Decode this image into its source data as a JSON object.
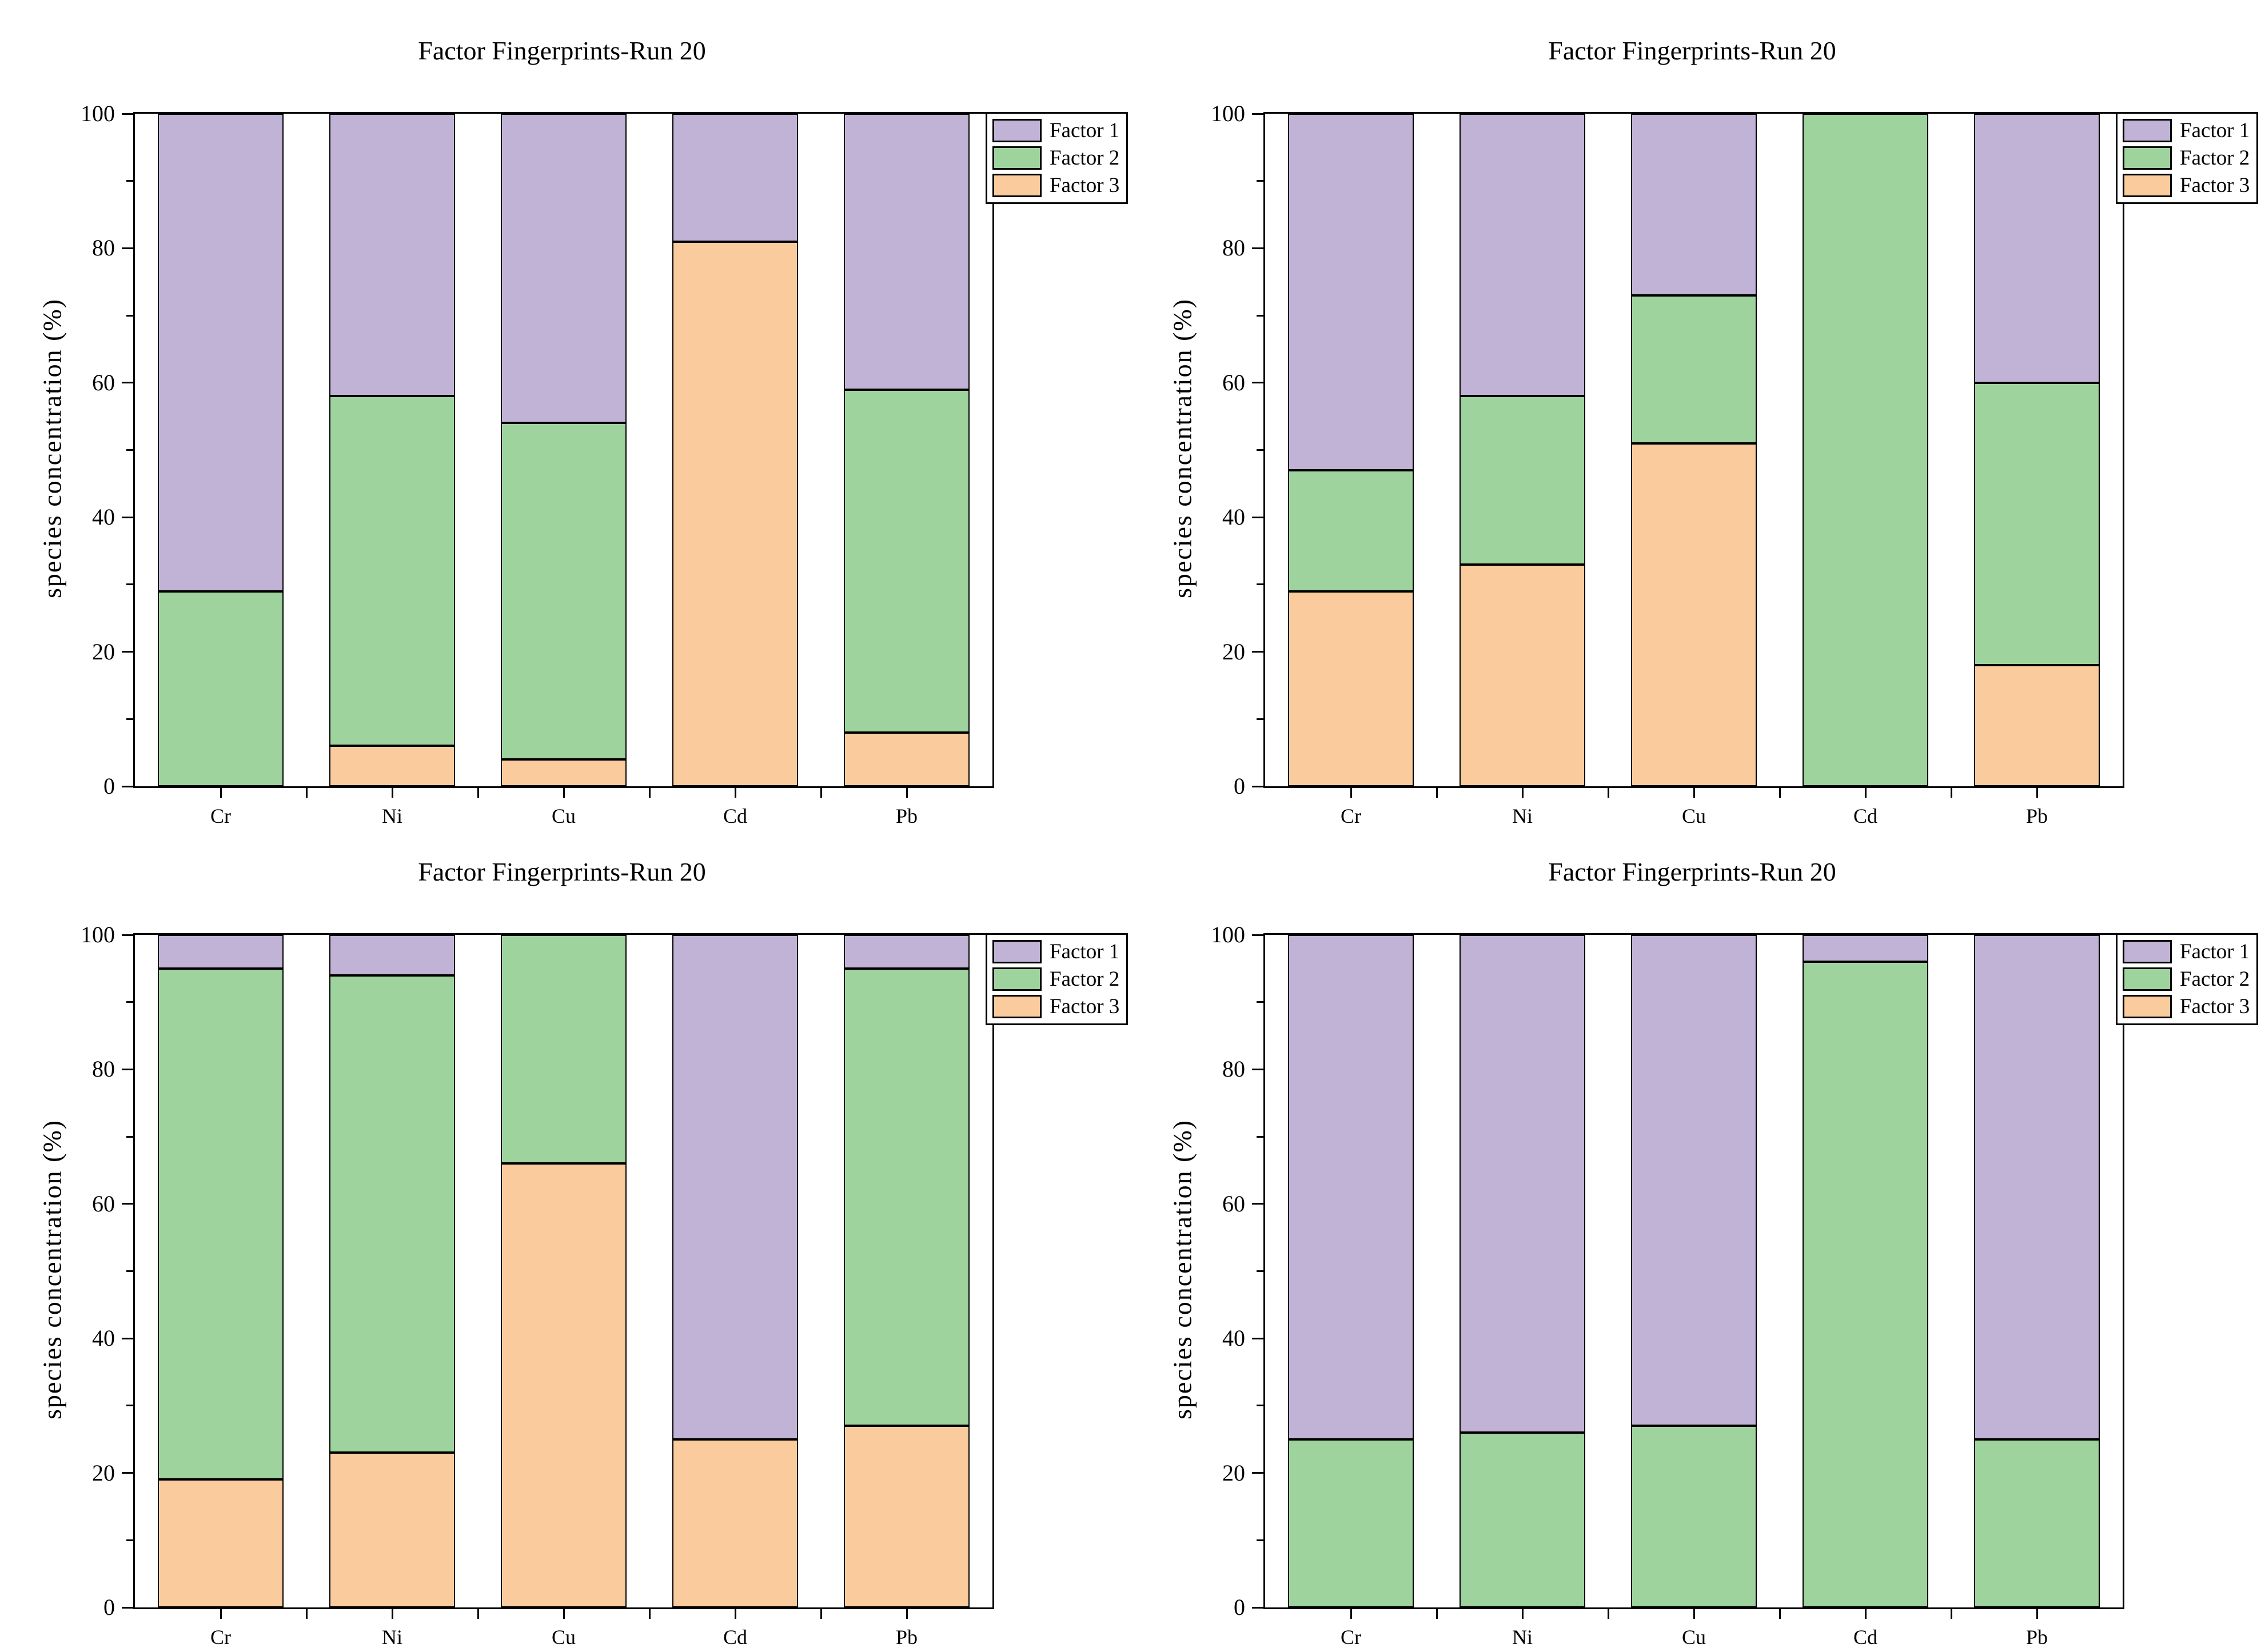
{
  "figure": {
    "layout": "2x2 grid of stacked bar charts",
    "background": "#ffffff"
  },
  "colors": {
    "factor1": "#C1B3D6",
    "factor2": "#9FD39E",
    "factor3": "#FACC9D",
    "axis": "#000000"
  },
  "chart_data": [
    {
      "type": "bar",
      "stacked": true,
      "position": "top-left",
      "title": "Factor Fingerprints-Run 20",
      "xlabel": "",
      "ylabel": "species concentration (%)",
      "ylim": [
        0,
        100
      ],
      "yticks_major": [
        0,
        20,
        40,
        60,
        80,
        100
      ],
      "yticks_minor": [
        10,
        30,
        50,
        70,
        90
      ],
      "grid": false,
      "legend_position": "top-right",
      "legend": [
        "Factor 1",
        "Factor 2",
        "Factor 3"
      ],
      "categories": [
        "Cr",
        "Ni",
        "Cu",
        "Cd",
        "Pb"
      ],
      "series": [
        {
          "name": "Factor 3",
          "color": "#FACC9D",
          "values": [
            0,
            6,
            4,
            81,
            8
          ]
        },
        {
          "name": "Factor 2",
          "color": "#9FD39E",
          "values": [
            29,
            52,
            50,
            0,
            51
          ]
        },
        {
          "name": "Factor 1",
          "color": "#C1B3D6",
          "values": [
            71,
            42,
            46,
            19,
            41
          ]
        }
      ]
    },
    {
      "type": "bar",
      "stacked": true,
      "position": "top-right",
      "title": "Factor Fingerprints-Run 20",
      "xlabel": "",
      "ylabel": "species concentration (%)",
      "ylim": [
        0,
        100
      ],
      "yticks_major": [
        0,
        20,
        40,
        60,
        80,
        100
      ],
      "yticks_minor": [
        10,
        30,
        50,
        70,
        90
      ],
      "grid": false,
      "legend_position": "top-right",
      "legend": [
        "Factor 1",
        "Factor 2",
        "Factor 3"
      ],
      "categories": [
        "Cr",
        "Ni",
        "Cu",
        "Cd",
        "Pb"
      ],
      "series": [
        {
          "name": "Factor 3",
          "color": "#FACC9D",
          "values": [
            29,
            33,
            51,
            0,
            18
          ]
        },
        {
          "name": "Factor 2",
          "color": "#9FD39E",
          "values": [
            18,
            25,
            22,
            100,
            42
          ]
        },
        {
          "name": "Factor 1",
          "color": "#C1B3D6",
          "values": [
            53,
            42,
            27,
            0,
            40
          ]
        }
      ]
    },
    {
      "type": "bar",
      "stacked": true,
      "position": "bottom-left",
      "title": "Factor Fingerprints-Run 20",
      "xlabel": "",
      "ylabel": "species concentration (%)",
      "ylim": [
        0,
        100
      ],
      "yticks_major": [
        0,
        20,
        40,
        60,
        80,
        100
      ],
      "yticks_minor": [
        10,
        30,
        50,
        70,
        90
      ],
      "grid": false,
      "legend_position": "top-right",
      "legend": [
        "Factor 1",
        "Factor 2",
        "Factor 3"
      ],
      "categories": [
        "Cr",
        "Ni",
        "Cu",
        "Cd",
        "Pb"
      ],
      "series": [
        {
          "name": "Factor 3",
          "color": "#FACC9D",
          "values": [
            19,
            23,
            66,
            25,
            27
          ]
        },
        {
          "name": "Factor 2",
          "color": "#9FD39E",
          "values": [
            76,
            71,
            34,
            0,
            68
          ]
        },
        {
          "name": "Factor 1",
          "color": "#C1B3D6",
          "values": [
            5,
            6,
            0,
            75,
            5
          ]
        }
      ]
    },
    {
      "type": "bar",
      "stacked": true,
      "position": "bottom-right",
      "title": "Factor Fingerprints-Run 20",
      "xlabel": "",
      "ylabel": "species concentration (%)",
      "ylim": [
        0,
        100
      ],
      "yticks_major": [
        0,
        20,
        40,
        60,
        80,
        100
      ],
      "yticks_minor": [
        10,
        30,
        50,
        70,
        90
      ],
      "grid": false,
      "legend_position": "top-right",
      "legend": [
        "Factor 1",
        "Factor 2",
        "Factor 3"
      ],
      "categories": [
        "Cr",
        "Ni",
        "Cu",
        "Cd",
        "Pb"
      ],
      "series": [
        {
          "name": "Factor 3",
          "color": "#FACC9D",
          "values": [
            0,
            0,
            0,
            0,
            0
          ]
        },
        {
          "name": "Factor 2",
          "color": "#9FD39E",
          "values": [
            25,
            26,
            27,
            96,
            25
          ]
        },
        {
          "name": "Factor 1",
          "color": "#C1B3D6",
          "values": [
            75,
            74,
            73,
            4,
            75
          ]
        }
      ]
    }
  ]
}
